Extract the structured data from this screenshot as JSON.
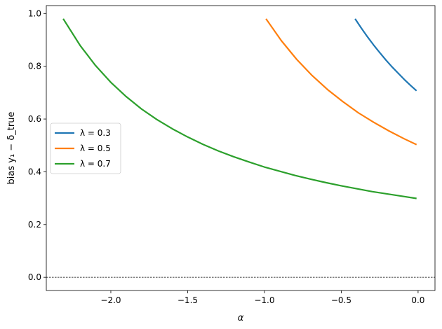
{
  "chart_data": {
    "type": "line",
    "title": "",
    "xlabel": "α",
    "ylabel": "bias y₁ − δ_true",
    "xlim": [
      -2.42,
      0.11
    ],
    "ylim": [
      -0.05,
      1.03
    ],
    "xticks": [
      -2.0,
      -1.5,
      -1.0,
      -0.5,
      0.0
    ],
    "xtick_labels": [
      "−2.0",
      "−1.5",
      "−1.0",
      "−0.5",
      "0.0"
    ],
    "yticks": [
      0.0,
      0.2,
      0.4,
      0.6,
      0.8,
      1.0
    ],
    "ytick_labels": [
      "0.0",
      "0.2",
      "0.4",
      "0.6",
      "0.8",
      "1.0"
    ],
    "grid": false,
    "legend_position": "center-left",
    "reference_line": {
      "y": 0.0,
      "style": "dashed",
      "color": "#000000"
    },
    "series": [
      {
        "name": "λ = 0.3",
        "color": "#1f77b4",
        "x": [
          -0.41,
          -0.37,
          -0.33,
          -0.29,
          -0.25,
          -0.21,
          -0.17,
          -0.13,
          -0.09,
          -0.05,
          -0.01
        ],
        "y": [
          0.98,
          0.945,
          0.912,
          0.881,
          0.852,
          0.824,
          0.798,
          0.774,
          0.75,
          0.728,
          0.707
        ]
      },
      {
        "name": "λ = 0.5",
        "color": "#ff7f0e",
        "x": [
          -0.99,
          -0.89,
          -0.79,
          -0.69,
          -0.59,
          -0.49,
          -0.39,
          -0.29,
          -0.19,
          -0.09,
          -0.01
        ],
        "y": [
          0.98,
          0.897,
          0.826,
          0.765,
          0.712,
          0.666,
          0.624,
          0.588,
          0.555,
          0.525,
          0.503
        ]
      },
      {
        "name": "λ = 0.7",
        "color": "#2ca02c",
        "x": [
          -2.31,
          -2.2,
          -2.1,
          -2.0,
          -1.9,
          -1.8,
          -1.7,
          -1.6,
          -1.5,
          -1.4,
          -1.3,
          -1.2,
          -1.1,
          -1.0,
          -0.9,
          -0.8,
          -0.7,
          -0.6,
          -0.5,
          -0.4,
          -0.3,
          -0.2,
          -0.1,
          -0.01
        ],
        "y": [
          0.98,
          0.879,
          0.803,
          0.739,
          0.685,
          0.638,
          0.598,
          0.563,
          0.532,
          0.504,
          0.479,
          0.457,
          0.437,
          0.418,
          0.402,
          0.386,
          0.372,
          0.359,
          0.347,
          0.336,
          0.325,
          0.316,
          0.307,
          0.299
        ]
      }
    ]
  }
}
